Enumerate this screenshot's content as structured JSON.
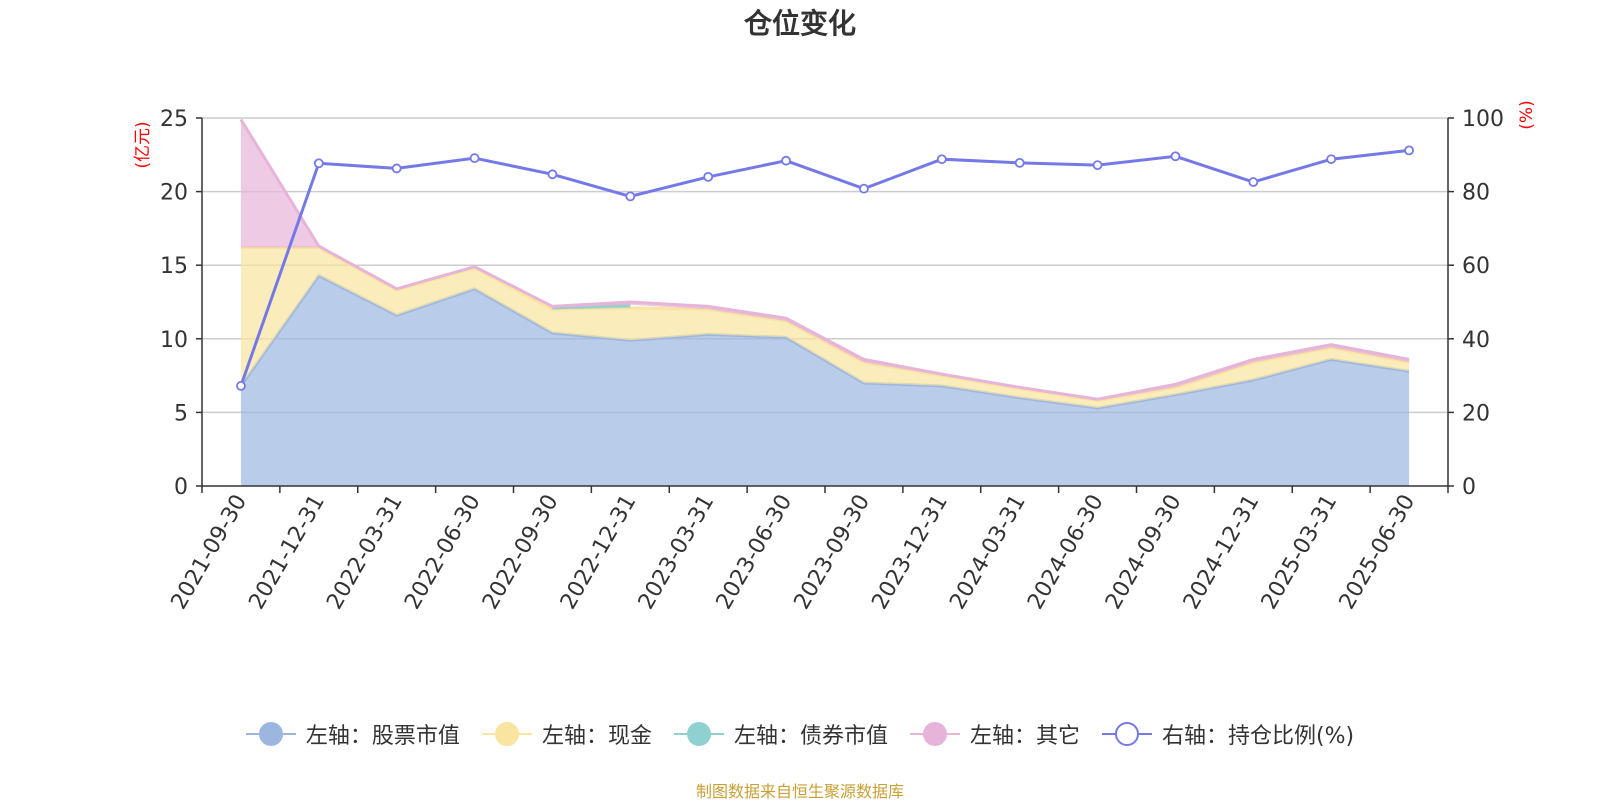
{
  "chart_data": {
    "type": "area",
    "title": "仓位变化",
    "left_axis": {
      "unit_label": "(亿元)",
      "ylim": [
        0,
        25
      ],
      "ticks": [
        0,
        5,
        10,
        15,
        20,
        25
      ]
    },
    "right_axis": {
      "unit_label": "(%)",
      "ylim": [
        0,
        100
      ],
      "ticks": [
        0,
        20,
        40,
        60,
        80,
        100
      ]
    },
    "categories": [
      "2021-09-30",
      "2021-12-31",
      "2022-03-31",
      "2022-06-30",
      "2022-09-30",
      "2022-12-31",
      "2023-03-31",
      "2023-06-30",
      "2023-09-30",
      "2023-12-31",
      "2024-03-31",
      "2024-06-30",
      "2024-09-30",
      "2024-12-31",
      "2025-03-31",
      "2025-06-30"
    ],
    "grid": true,
    "legend_position": "bottom",
    "stacked_series": [
      {
        "name": "左轴：股票市值",
        "axis": "left",
        "color": "#9bb7e0",
        "values": [
          6.8,
          14.3,
          11.6,
          13.4,
          10.4,
          9.9,
          10.3,
          10.1,
          7.0,
          6.8,
          6.0,
          5.3,
          6.2,
          7.2,
          8.6,
          7.8
        ]
      },
      {
        "name": "左轴：现金",
        "axis": "left",
        "color": "#f9e4a0",
        "values": [
          9.4,
          1.9,
          1.7,
          1.4,
          1.6,
          2.2,
          1.7,
          1.1,
          1.4,
          0.7,
          0.6,
          0.5,
          0.5,
          1.2,
          0.8,
          0.6
        ]
      },
      {
        "name": "左轴：债券市值",
        "axis": "left",
        "color": "#8fd0d1",
        "values": [
          0,
          0,
          0,
          0,
          0.1,
          0.2,
          0,
          0,
          0,
          0,
          0,
          0,
          0,
          0,
          0,
          0
        ]
      },
      {
        "name": "左轴：其它",
        "axis": "left",
        "color": "#e7b4d9",
        "values": [
          8.7,
          0.1,
          0.1,
          0.1,
          0.1,
          0.2,
          0.2,
          0.2,
          0.2,
          0.1,
          0.1,
          0.1,
          0.2,
          0.2,
          0.2,
          0.2
        ]
      }
    ],
    "line_series": [
      {
        "name": "右轴：持仓比例(%)",
        "axis": "right",
        "color": "#7579e7",
        "values": [
          27.2,
          87.7,
          86.3,
          89.1,
          84.7,
          78.7,
          84.0,
          88.4,
          80.8,
          88.8,
          87.8,
          87.2,
          89.6,
          82.6,
          88.8,
          91.2
        ]
      }
    ]
  },
  "source_note": "制图数据来自恒生聚源数据库"
}
